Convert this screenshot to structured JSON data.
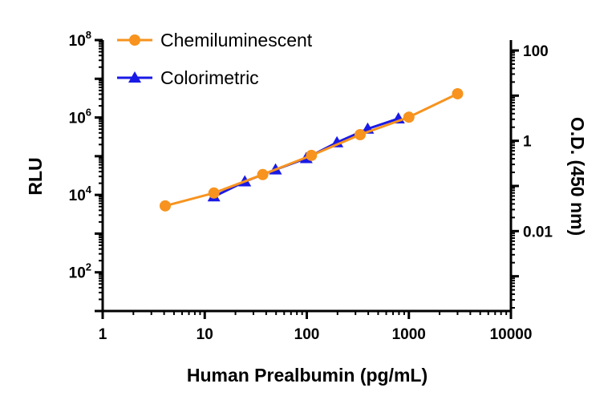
{
  "chart_data": {
    "type": "line",
    "xlabel": "Human Prealbumin (pg/mL)",
    "ylabel_left": "RLU",
    "ylabel_right": "O.D. (450 nm)",
    "x_scale": "log",
    "y_scale_left": "log",
    "y_scale_right": "log",
    "xlim": [
      1,
      10000
    ],
    "ylim_left": [
      10,
      100000000
    ],
    "ylim_right": [
      0.00017,
      170
    ],
    "x_ticks": [
      1,
      10,
      100,
      1000,
      10000
    ],
    "x_tick_labels": [
      "1",
      "10",
      "100",
      "1000",
      "10000"
    ],
    "y_left_ticks": [
      100,
      10000,
      1000000,
      100000000
    ],
    "y_left_tick_labels": [
      {
        "base": "10",
        "exp": "2"
      },
      {
        "base": "10",
        "exp": "4"
      },
      {
        "base": "10",
        "exp": "6"
      },
      {
        "base": "10",
        "exp": "8"
      }
    ],
    "y_right_ticks": [
      0.01,
      1,
      100
    ],
    "y_right_tick_labels": [
      "0.01",
      "1",
      "100"
    ],
    "grid": false,
    "legend_placement": "top-left",
    "series": [
      {
        "name": "Chemiluminescent",
        "axis": "left",
        "marker": "circle",
        "color": "#F7931E",
        "x": [
          4.1,
          12.3,
          37,
          111,
          333,
          1000,
          3000
        ],
        "y": [
          5200,
          11200,
          33500,
          105000,
          360000,
          1020000,
          4100000
        ]
      },
      {
        "name": "Colorimetric",
        "axis": "right",
        "marker": "triangle",
        "color": "#1A1AE6",
        "x": [
          12.3,
          24.7,
          49.4,
          98.8,
          197.5,
          395,
          790
        ],
        "y": [
          0.058,
          0.125,
          0.23,
          0.41,
          0.92,
          1.84,
          3.1
        ]
      }
    ]
  }
}
